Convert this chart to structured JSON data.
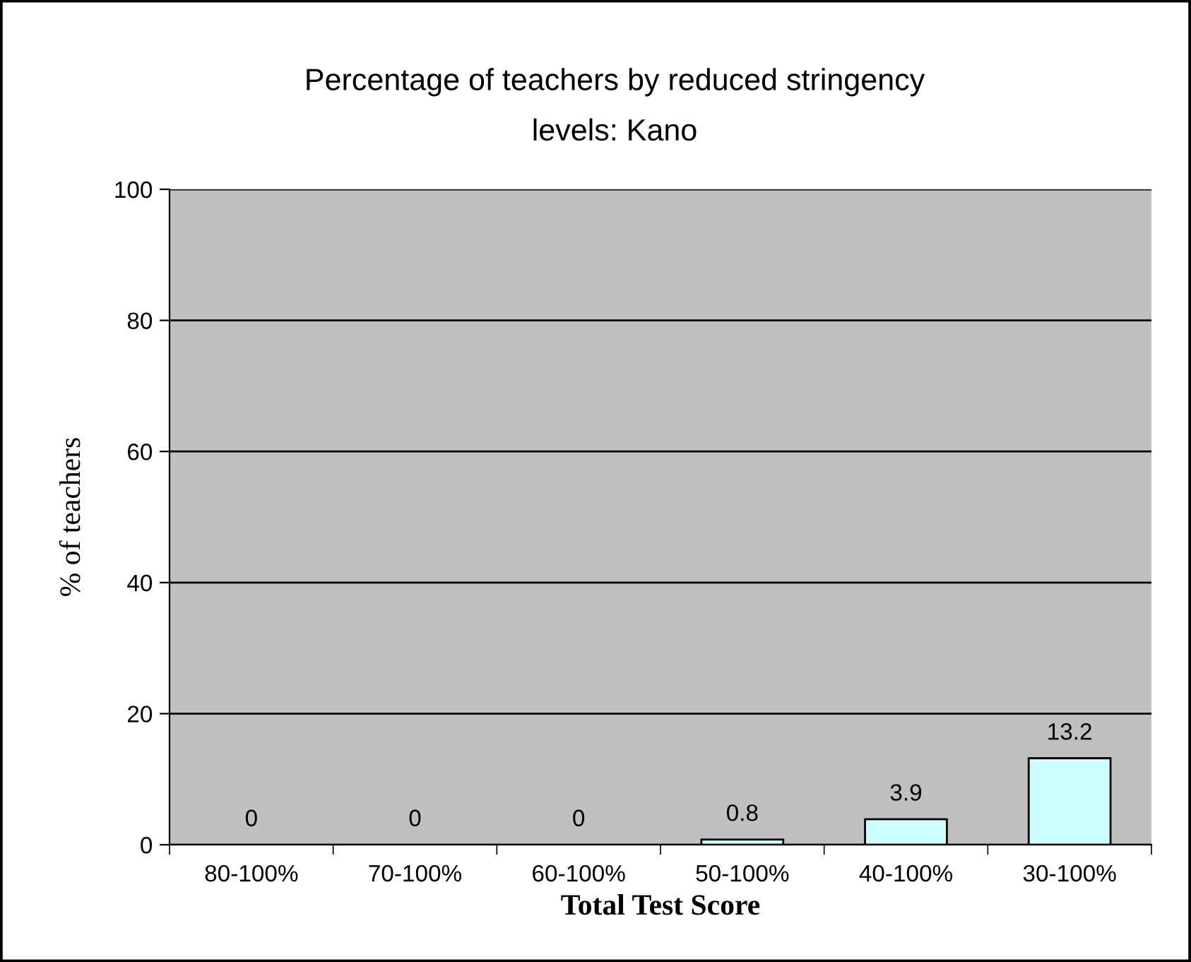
{
  "chart_data": {
    "type": "bar",
    "title": "Percentage of teachers by reduced stringency\nlevels: Kano",
    "xlabel": "Total Test Score",
    "ylabel": "% of teachers",
    "categories": [
      "80-100%",
      "70-100%",
      "60-100%",
      "50-100%",
      "40-100%",
      "30-100%"
    ],
    "values": [
      0,
      0,
      0,
      0.8,
      3.9,
      13.2
    ],
    "color": "#ccffff",
    "ylim": [
      0,
      100
    ],
    "yticks": [
      0,
      20,
      40,
      60,
      80,
      100
    ],
    "grid": "y",
    "data_labels": true,
    "legend": false
  }
}
